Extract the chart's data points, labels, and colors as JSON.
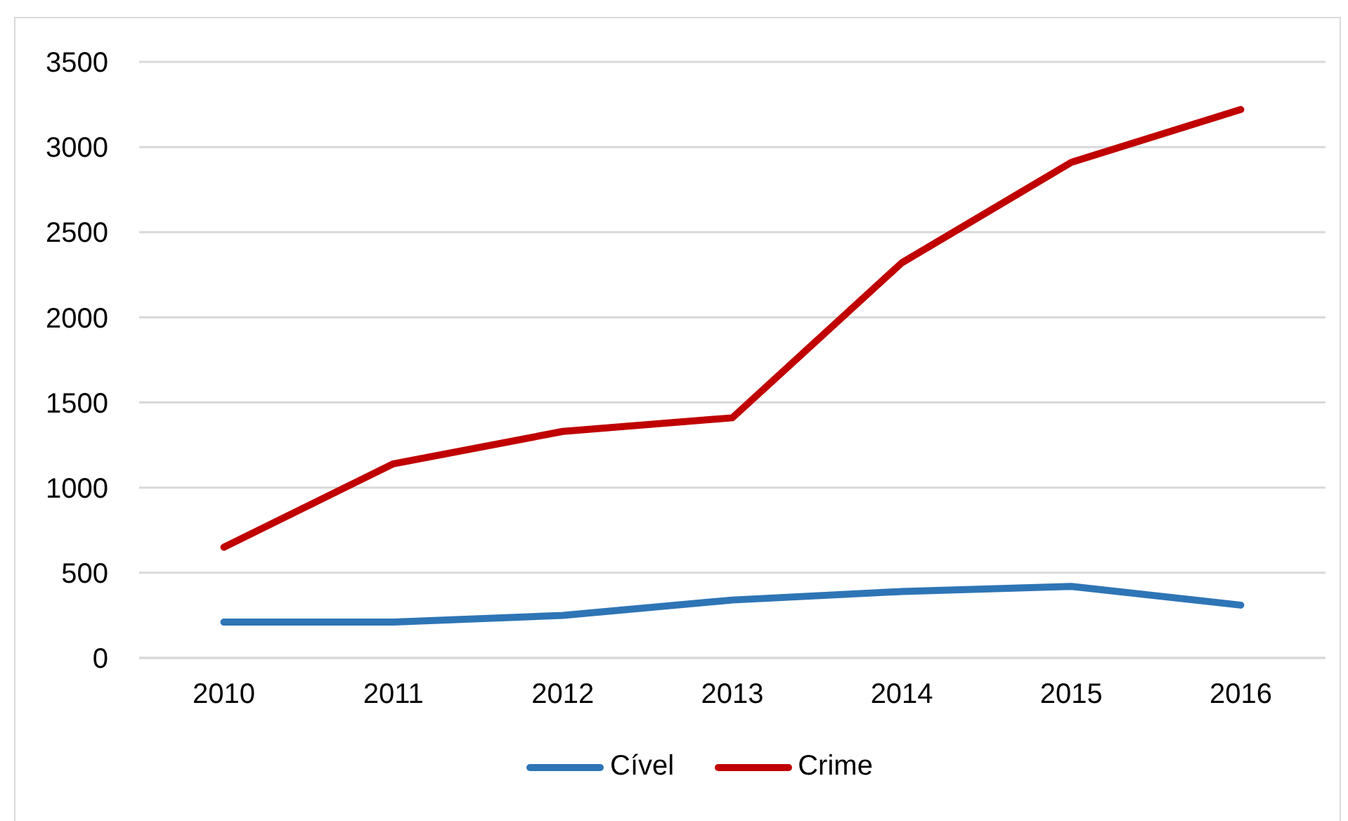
{
  "chart_data": {
    "type": "line",
    "categories": [
      "2010",
      "2011",
      "2012",
      "2013",
      "2014",
      "2015",
      "2016"
    ],
    "series": [
      {
        "name": "Cível",
        "color": "#2e75b6",
        "values": [
          210,
          210,
          250,
          340,
          390,
          420,
          310
        ]
      },
      {
        "name": "Crime",
        "color": "#c00000",
        "values": [
          650,
          1140,
          1330,
          1410,
          2320,
          2910,
          3220
        ]
      }
    ],
    "ylim": [
      0,
      3500
    ],
    "yticks": [
      0,
      500,
      1000,
      1500,
      2000,
      2500,
      3000,
      3500
    ],
    "grid": "y",
    "legend": "bottom",
    "line_style": "solid"
  }
}
